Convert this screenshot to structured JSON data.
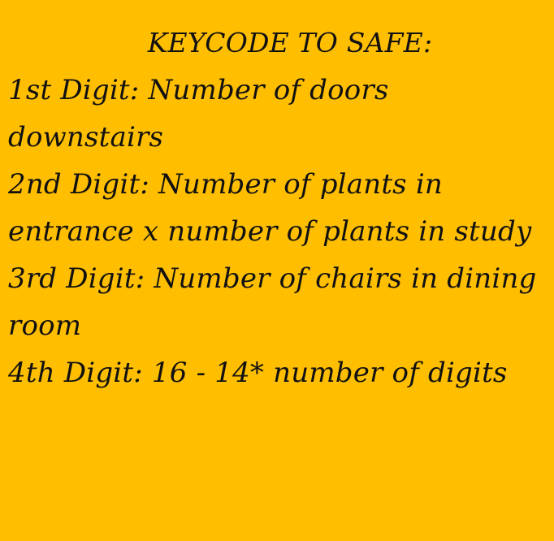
{
  "note": {
    "title": "KEYCODE TO SAFE:",
    "background_color": "#FFBE00",
    "text_color": "#111111",
    "clues": [
      {
        "label": "1st Digit:",
        "text": "Number of doors downstairs"
      },
      {
        "label": "2nd Digit:",
        "text": "Number of plants in entrance x number of plants in study"
      },
      {
        "label": "3rd Digit:",
        "text": "Number of chairs in dining room"
      },
      {
        "label": "4th Digit:",
        "text": "16 - 14* number of digits"
      }
    ]
  }
}
